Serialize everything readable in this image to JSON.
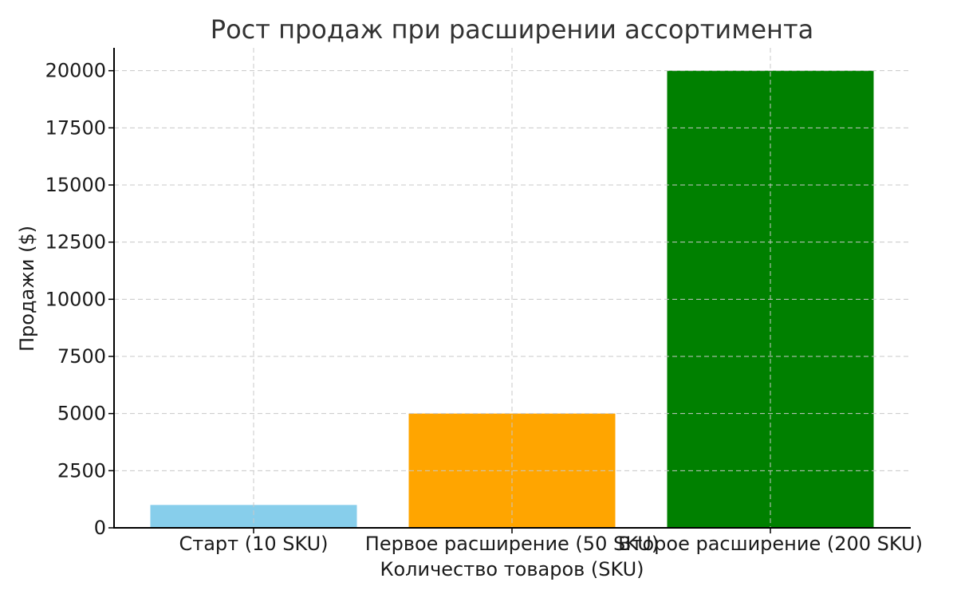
{
  "chart_data": {
    "type": "bar",
    "title": "Рост продаж при расширении ассортимента",
    "xlabel": "Количество товаров (SKU)",
    "ylabel": "Продажи ($)",
    "categories": [
      "Старт (10 SKU)",
      "Первое расширение (50 SKU)",
      "Второе расширение (200 SKU)"
    ],
    "values": [
      1000,
      5000,
      20000
    ],
    "colors": [
      "#87ceeb",
      "#ffa500",
      "#008000"
    ],
    "ylim": [
      0,
      21000
    ],
    "yticks": [
      0,
      2500,
      5000,
      7500,
      10000,
      12500,
      15000,
      17500,
      20000
    ],
    "grid": true,
    "legend": false
  }
}
